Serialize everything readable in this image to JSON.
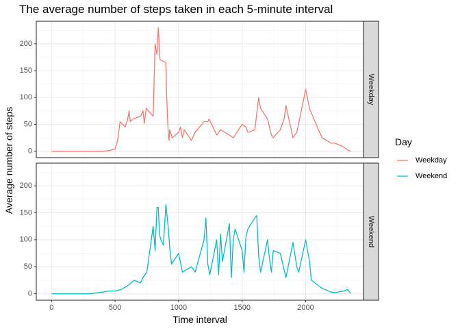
{
  "chart_data": {
    "type": "line",
    "title": "The average number of steps taken in each 5-minute interval",
    "xlabel": "Time interval",
    "ylabel": "Average number of steps",
    "xlim": [
      -120,
      2455
    ],
    "ylim": [
      -12,
      242
    ],
    "x_ticks": [
      0,
      500,
      1000,
      1500,
      2000
    ],
    "y_ticks": [
      0,
      50,
      100,
      150,
      200
    ],
    "grid": true,
    "facets": [
      "Weekday",
      "Weekend"
    ],
    "legend": {
      "title": "Day",
      "position": "right",
      "entries": [
        "Weekday",
        "Weekend"
      ]
    },
    "colors": {
      "Weekday": "#F8766D",
      "Weekend": "#00BFC4"
    },
    "series": [
      {
        "name": "Weekday",
        "x": [
          0,
          100,
          200,
          300,
          400,
          450,
          500,
          520,
          540,
          560,
          580,
          600,
          610,
          620,
          640,
          700,
          720,
          730,
          745,
          800,
          815,
          830,
          835,
          840,
          845,
          850,
          855,
          900,
          905,
          910,
          915,
          920,
          925,
          930,
          950,
          1000,
          1015,
          1030,
          1045,
          1100,
          1130,
          1200,
          1230,
          1240,
          1250,
          1300,
          1330,
          1400,
          1430,
          1500,
          1530,
          1545,
          1600,
          1630,
          1645,
          1700,
          1730,
          1745,
          1800,
          1830,
          1845,
          1900,
          1930,
          2000,
          2030,
          2100,
          2130,
          2200,
          2230,
          2300,
          2330,
          2355
        ],
        "values": [
          0,
          0,
          0,
          0,
          0,
          1,
          4,
          20,
          55,
          50,
          45,
          60,
          75,
          55,
          60,
          65,
          75,
          52,
          80,
          65,
          200,
          180,
          205,
          230,
          210,
          180,
          170,
          165,
          110,
          80,
          50,
          30,
          20,
          40,
          25,
          35,
          45,
          25,
          40,
          20,
          35,
          55,
          55,
          60,
          55,
          30,
          40,
          30,
          25,
          50,
          45,
          35,
          40,
          100,
          80,
          60,
          30,
          25,
          40,
          60,
          85,
          25,
          35,
          115,
          80,
          40,
          25,
          15,
          15,
          8,
          2,
          0
        ]
      },
      {
        "name": "Weekend",
        "x": [
          0,
          100,
          200,
          300,
          400,
          450,
          500,
          550,
          600,
          650,
          700,
          720,
          750,
          800,
          815,
          830,
          840,
          850,
          860,
          880,
          900,
          920,
          930,
          945,
          1000,
          1030,
          1100,
          1130,
          1200,
          1215,
          1230,
          1245,
          1300,
          1315,
          1330,
          1345,
          1400,
          1415,
          1430,
          1445,
          1500,
          1515,
          1530,
          1545,
          1600,
          1615,
          1630,
          1645,
          1700,
          1715,
          1730,
          1745,
          1800,
          1815,
          1830,
          1845,
          1900,
          1930,
          1945,
          2000,
          2030,
          2045,
          2100,
          2130,
          2200,
          2230,
          2300,
          2330,
          2355
        ],
        "values": [
          0,
          0,
          0,
          0,
          3,
          5,
          5,
          8,
          15,
          25,
          20,
          30,
          40,
          125,
          80,
          160,
          160,
          110,
          100,
          90,
          165,
          120,
          85,
          55,
          75,
          40,
          50,
          40,
          100,
          140,
          55,
          35,
          100,
          35,
          110,
          60,
          130,
          30,
          100,
          120,
          80,
          40,
          105,
          120,
          140,
          145,
          70,
          40,
          100,
          65,
          40,
          80,
          75,
          60,
          45,
          30,
          95,
          50,
          40,
          100,
          60,
          25,
          15,
          10,
          3,
          2,
          5,
          8,
          0
        ]
      }
    ]
  }
}
